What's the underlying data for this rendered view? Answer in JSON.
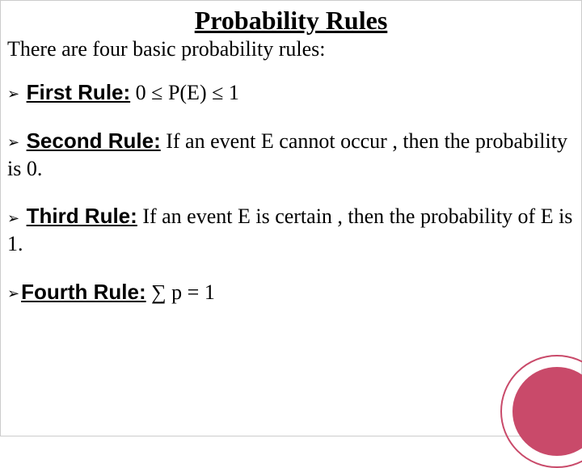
{
  "title": "Probability Rules",
  "intro": "There are four basic probability rules:",
  "bullet": "➢",
  "rules": [
    {
      "label": "First Rule:",
      "text": " 0 ≤ P(E) ≤ 1"
    },
    {
      "label": "Second Rule:",
      "text": " If an event E cannot occur , then the probability is 0."
    },
    {
      "label": "Third Rule:",
      "text": " If an event E is certain , then the probability of E is 1."
    },
    {
      "label": "Fourth Rule:",
      "text": " ∑ p = 1"
    }
  ],
  "colors": {
    "accent": "#c94a6a",
    "text": "#000000",
    "background": "#ffffff"
  },
  "typography": {
    "title_fontsize": 32,
    "body_fontsize": 26,
    "title_font": "Georgia",
    "label_font": "Arial"
  }
}
